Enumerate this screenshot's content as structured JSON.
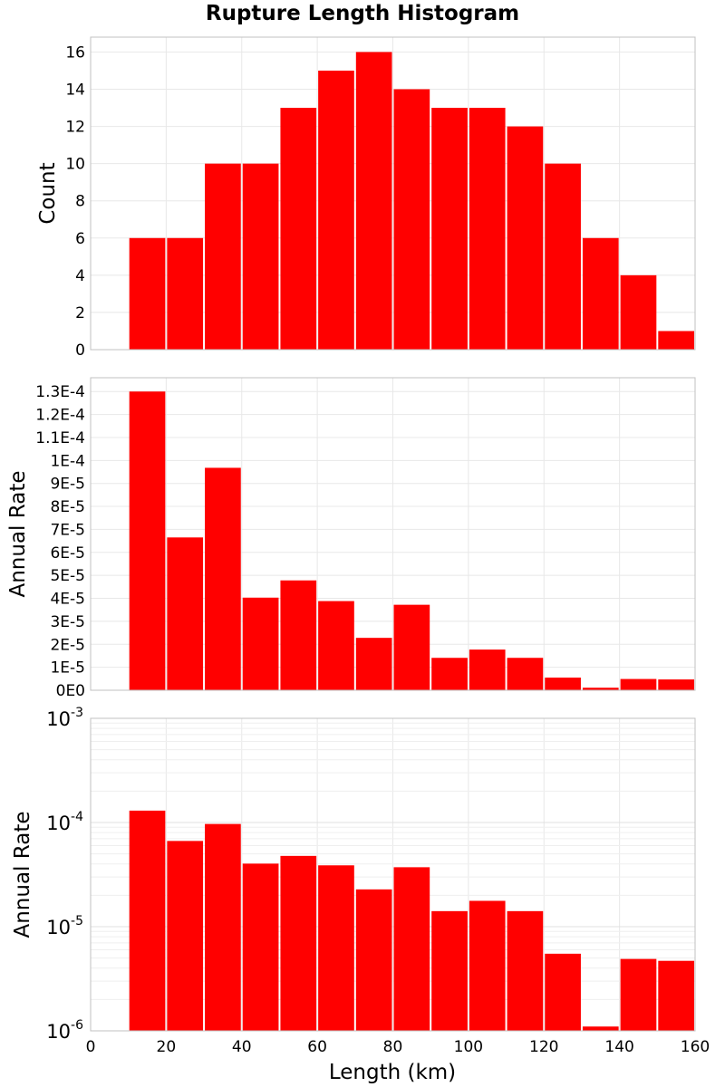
{
  "chart_data": [
    {
      "type": "bar",
      "title": "Rupture Length Histogram",
      "xlabel": "Length (km)",
      "ylabel": "Count",
      "xlim": [
        0,
        160
      ],
      "ylim": [
        0,
        16.8
      ],
      "y_scale": "linear",
      "grid": true,
      "bar_color": "#ff0000",
      "x_ticks": [
        "0",
        "20",
        "40",
        "60",
        "80",
        "100",
        "120",
        "140",
        "160"
      ],
      "y_ticks": [
        {
          "value": 0,
          "label": "0"
        },
        {
          "value": 2,
          "label": "2"
        },
        {
          "value": 4,
          "label": "4"
        },
        {
          "value": 6,
          "label": "6"
        },
        {
          "value": 8,
          "label": "8"
        },
        {
          "value": 10,
          "label": "10"
        },
        {
          "value": 12,
          "label": "12"
        },
        {
          "value": 14,
          "label": "14"
        },
        {
          "value": 16,
          "label": "16"
        }
      ],
      "bins": [
        {
          "x0": 10,
          "x1": 20,
          "value": 6
        },
        {
          "x0": 20,
          "x1": 30,
          "value": 6
        },
        {
          "x0": 30,
          "x1": 40,
          "value": 10
        },
        {
          "x0": 40,
          "x1": 50,
          "value": 10
        },
        {
          "x0": 50,
          "x1": 60,
          "value": 13
        },
        {
          "x0": 60,
          "x1": 70,
          "value": 15
        },
        {
          "x0": 70,
          "x1": 80,
          "value": 16
        },
        {
          "x0": 80,
          "x1": 90,
          "value": 14
        },
        {
          "x0": 90,
          "x1": 100,
          "value": 13
        },
        {
          "x0": 100,
          "x1": 110,
          "value": 13
        },
        {
          "x0": 110,
          "x1": 120,
          "value": 12
        },
        {
          "x0": 120,
          "x1": 130,
          "value": 10
        },
        {
          "x0": 130,
          "x1": 140,
          "value": 6
        },
        {
          "x0": 140,
          "x1": 150,
          "value": 4
        },
        {
          "x0": 150,
          "x1": 160,
          "value": 1
        }
      ]
    },
    {
      "type": "bar",
      "ylabel": "Annual Rate",
      "xlim": [
        0,
        160
      ],
      "ylim": [
        0,
        0.000136
      ],
      "y_scale": "linear",
      "grid": true,
      "bar_color": "#ff0000",
      "y_ticks": [
        {
          "value": 0,
          "label": "0E0"
        },
        {
          "value": 1e-05,
          "label": "1E-5"
        },
        {
          "value": 2e-05,
          "label": "2E-5"
        },
        {
          "value": 3e-05,
          "label": "3E-5"
        },
        {
          "value": 4e-05,
          "label": "4E-5"
        },
        {
          "value": 5e-05,
          "label": "5E-5"
        },
        {
          "value": 6e-05,
          "label": "6E-5"
        },
        {
          "value": 7e-05,
          "label": "7E-5"
        },
        {
          "value": 8e-05,
          "label": "8E-5"
        },
        {
          "value": 9e-05,
          "label": "9E-5"
        },
        {
          "value": 0.0001,
          "label": "1E-4"
        },
        {
          "value": 0.00011,
          "label": "1.1E-4"
        },
        {
          "value": 0.00012,
          "label": "1.2E-4"
        },
        {
          "value": 0.00013,
          "label": "1.3E-4"
        }
      ],
      "bins": [
        {
          "x0": 10,
          "x1": 20,
          "value": 0.00013
        },
        {
          "x0": 20,
          "x1": 30,
          "value": 6.65e-05
        },
        {
          "x0": 30,
          "x1": 40,
          "value": 9.68e-05
        },
        {
          "x0": 40,
          "x1": 50,
          "value": 4.03e-05
        },
        {
          "x0": 50,
          "x1": 60,
          "value": 4.78e-05
        },
        {
          "x0": 60,
          "x1": 70,
          "value": 3.88e-05
        },
        {
          "x0": 70,
          "x1": 80,
          "value": 2.28e-05
        },
        {
          "x0": 80,
          "x1": 90,
          "value": 3.72e-05
        },
        {
          "x0": 90,
          "x1": 100,
          "value": 1.41e-05
        },
        {
          "x0": 100,
          "x1": 110,
          "value": 1.77e-05
        },
        {
          "x0": 110,
          "x1": 120,
          "value": 1.41e-05
        },
        {
          "x0": 120,
          "x1": 130,
          "value": 5.5e-06
        },
        {
          "x0": 130,
          "x1": 140,
          "value": 1.1e-06
        },
        {
          "x0": 140,
          "x1": 150,
          "value": 4.9e-06
        },
        {
          "x0": 150,
          "x1": 160,
          "value": 4.7e-06
        }
      ]
    },
    {
      "type": "bar",
      "ylabel": "Annual Rate",
      "xlabel": "Length (km)",
      "xlim": [
        0,
        160
      ],
      "ylim": [
        1e-06,
        0.001
      ],
      "y_scale": "log",
      "grid": true,
      "bar_color": "#ff0000",
      "y_ticks": [
        {
          "value": 1e-06,
          "base": "10",
          "exp": "-6"
        },
        {
          "value": 1e-05,
          "base": "10",
          "exp": "-5"
        },
        {
          "value": 0.0001,
          "base": "10",
          "exp": "-4"
        },
        {
          "value": 0.001,
          "base": "10",
          "exp": "-3"
        }
      ],
      "bins": [
        {
          "x0": 10,
          "x1": 20,
          "value": 0.00013
        },
        {
          "x0": 20,
          "x1": 30,
          "value": 6.65e-05
        },
        {
          "x0": 30,
          "x1": 40,
          "value": 9.68e-05
        },
        {
          "x0": 40,
          "x1": 50,
          "value": 4.03e-05
        },
        {
          "x0": 50,
          "x1": 60,
          "value": 4.78e-05
        },
        {
          "x0": 60,
          "x1": 70,
          "value": 3.88e-05
        },
        {
          "x0": 70,
          "x1": 80,
          "value": 2.28e-05
        },
        {
          "x0": 80,
          "x1": 90,
          "value": 3.72e-05
        },
        {
          "x0": 90,
          "x1": 100,
          "value": 1.41e-05
        },
        {
          "x0": 100,
          "x1": 110,
          "value": 1.77e-05
        },
        {
          "x0": 110,
          "x1": 120,
          "value": 1.41e-05
        },
        {
          "x0": 120,
          "x1": 130,
          "value": 5.5e-06
        },
        {
          "x0": 130,
          "x1": 140,
          "value": 1.1e-06
        },
        {
          "x0": 140,
          "x1": 150,
          "value": 4.9e-06
        },
        {
          "x0": 150,
          "x1": 160,
          "value": 4.7e-06
        }
      ]
    }
  ]
}
